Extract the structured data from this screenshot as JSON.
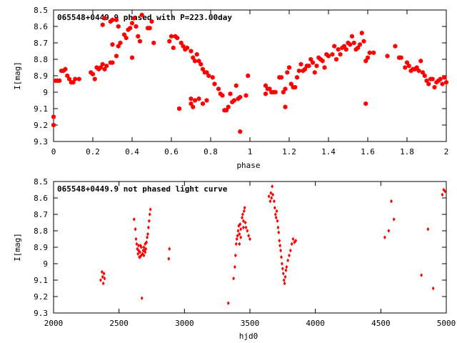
{
  "chart_data": [
    {
      "type": "scatter",
      "title": "065548+0449.9 phased with P=223.00day",
      "xlabel": "phase",
      "ylabel": "I[mag]",
      "xlim": [
        0,
        2
      ],
      "ylim": [
        9.3,
        8.5
      ],
      "y_inverted": true,
      "marker": "hexagon",
      "color": "#ff0000",
      "xticks": [
        0,
        0.2,
        0.4,
        0.6,
        0.8,
        1,
        1.2,
        1.4,
        1.6,
        1.8,
        2
      ],
      "xtick_labels": [
        "0",
        "0.2",
        "0.4",
        "0.6",
        "0.8",
        "1",
        "1.2",
        "1.4",
        "1.6",
        "1.8",
        "2"
      ],
      "yticks": [
        8.5,
        8.6,
        8.7,
        8.8,
        8.9,
        9,
        9.1,
        9.2,
        9.3
      ],
      "ytick_labels": [
        "8.5",
        "8.6",
        "8.7",
        "8.8",
        "8.9",
        "9",
        "9.1",
        "9.2",
        "9.3"
      ],
      "points": [
        [
          0.0,
          9.15
        ],
        [
          0.0,
          9.2
        ],
        [
          0.01,
          8.93
        ],
        [
          0.02,
          8.93
        ],
        [
          0.03,
          8.93
        ],
        [
          0.04,
          8.87
        ],
        [
          0.05,
          8.87
        ],
        [
          0.06,
          8.86
        ],
        [
          0.07,
          8.9
        ],
        [
          0.08,
          8.92
        ],
        [
          0.09,
          8.94
        ],
        [
          0.1,
          8.94
        ],
        [
          0.11,
          8.92
        ],
        [
          0.13,
          8.92
        ],
        [
          0.19,
          8.88
        ],
        [
          0.2,
          8.89
        ],
        [
          0.21,
          8.92
        ],
        [
          0.22,
          8.85
        ],
        [
          0.23,
          8.86
        ],
        [
          0.24,
          8.85
        ],
        [
          0.25,
          8.83
        ],
        [
          0.26,
          8.86
        ],
        [
          0.27,
          8.84
        ],
        [
          0.29,
          8.82
        ],
        [
          0.3,
          8.82
        ],
        [
          0.32,
          8.78
        ],
        [
          0.25,
          8.59
        ],
        [
          0.26,
          8.55
        ],
        [
          0.29,
          8.57
        ],
        [
          0.3,
          8.56
        ],
        [
          0.32,
          8.56
        ],
        [
          0.33,
          8.6
        ],
        [
          0.3,
          8.71
        ],
        [
          0.33,
          8.72
        ],
        [
          0.34,
          8.7
        ],
        [
          0.36,
          8.65
        ],
        [
          0.37,
          8.67
        ],
        [
          0.38,
          8.62
        ],
        [
          0.39,
          8.61
        ],
        [
          0.4,
          8.58
        ],
        [
          0.41,
          8.55
        ],
        [
          0.42,
          8.6
        ],
        [
          0.4,
          8.79
        ],
        [
          0.43,
          8.66
        ],
        [
          0.44,
          8.69
        ],
        [
          0.45,
          8.53
        ],
        [
          0.48,
          8.61
        ],
        [
          0.49,
          8.61
        ],
        [
          0.5,
          8.57
        ],
        [
          0.51,
          8.7
        ],
        [
          0.59,
          8.69
        ],
        [
          0.6,
          8.66
        ],
        [
          0.61,
          8.73
        ],
        [
          0.62,
          8.66
        ],
        [
          0.63,
          8.67
        ],
        [
          0.65,
          8.7
        ],
        [
          0.66,
          8.72
        ],
        [
          0.67,
          8.74
        ],
        [
          0.68,
          8.73
        ],
        [
          0.7,
          8.75
        ],
        [
          0.71,
          8.79
        ],
        [
          0.72,
          8.81
        ],
        [
          0.73,
          8.77
        ],
        [
          0.74,
          8.81
        ],
        [
          0.75,
          8.83
        ],
        [
          0.76,
          8.86
        ],
        [
          0.77,
          8.88
        ],
        [
          0.78,
          8.88
        ],
        [
          0.79,
          8.9
        ],
        [
          0.81,
          8.91
        ],
        [
          0.82,
          8.95
        ],
        [
          0.64,
          9.1
        ],
        [
          0.7,
          9.04
        ],
        [
          0.7,
          9.07
        ],
        [
          0.71,
          9.09
        ],
        [
          0.72,
          9.05
        ],
        [
          0.74,
          9.04
        ],
        [
          0.76,
          9.07
        ],
        [
          0.78,
          9.05
        ],
        [
          0.84,
          8.98
        ],
        [
          0.85,
          9.01
        ],
        [
          0.86,
          9.02
        ],
        [
          0.87,
          9.11
        ],
        [
          0.88,
          9.11
        ],
        [
          0.89,
          9.09
        ],
        [
          0.9,
          9.01
        ],
        [
          0.91,
          9.06
        ],
        [
          0.92,
          9.05
        ],
        [
          0.93,
          8.96
        ],
        [
          0.94,
          9.04
        ],
        [
          0.95,
          9.03
        ],
        [
          0.95,
          9.24
        ],
        [
          0.98,
          9.02
        ],
        [
          0.99,
          8.9
        ],
        [
          1.08,
          9.01
        ],
        [
          1.08,
          8.96
        ],
        [
          1.09,
          8.98
        ],
        [
          1.1,
          8.98
        ],
        [
          1.11,
          9.0
        ],
        [
          1.12,
          9.0
        ],
        [
          1.13,
          9.0
        ],
        [
          1.15,
          8.91
        ],
        [
          1.16,
          8.91
        ],
        [
          1.17,
          9.0
        ],
        [
          1.18,
          9.09
        ],
        [
          1.18,
          8.98
        ],
        [
          1.19,
          8.88
        ],
        [
          1.2,
          8.85
        ],
        [
          1.21,
          8.95
        ],
        [
          1.22,
          8.97
        ],
        [
          1.23,
          8.97
        ],
        [
          1.24,
          8.91
        ],
        [
          1.25,
          8.87
        ],
        [
          1.26,
          8.83
        ],
        [
          1.27,
          8.87
        ],
        [
          1.28,
          8.86
        ],
        [
          1.29,
          8.84
        ],
        [
          1.3,
          8.84
        ],
        [
          1.31,
          8.8
        ],
        [
          1.32,
          8.82
        ],
        [
          1.33,
          8.88
        ],
        [
          1.34,
          8.84
        ],
        [
          1.35,
          8.79
        ],
        [
          1.36,
          8.8
        ],
        [
          1.37,
          8.81
        ],
        [
          1.38,
          8.85
        ],
        [
          1.39,
          8.77
        ],
        [
          1.4,
          8.78
        ],
        [
          1.42,
          8.77
        ],
        [
          1.43,
          8.72
        ],
        [
          1.44,
          8.8
        ],
        [
          1.45,
          8.74
        ],
        [
          1.46,
          8.77
        ],
        [
          1.47,
          8.73
        ],
        [
          1.48,
          8.72
        ],
        [
          1.49,
          8.74
        ],
        [
          1.5,
          8.7
        ],
        [
          1.51,
          8.71
        ],
        [
          1.52,
          8.66
        ],
        [
          1.53,
          8.7
        ],
        [
          1.54,
          8.74
        ],
        [
          1.55,
          8.73
        ],
        [
          1.56,
          8.71
        ],
        [
          1.57,
          8.64
        ],
        [
          1.58,
          8.69
        ],
        [
          1.59,
          8.81
        ],
        [
          1.6,
          8.79
        ],
        [
          1.61,
          8.76
        ],
        [
          1.63,
          8.76
        ],
        [
          1.59,
          9.07
        ],
        [
          1.7,
          8.78
        ],
        [
          1.74,
          8.72
        ],
        [
          1.76,
          8.79
        ],
        [
          1.77,
          8.79
        ],
        [
          1.79,
          8.85
        ],
        [
          1.8,
          8.82
        ],
        [
          1.81,
          8.84
        ],
        [
          1.82,
          8.87
        ],
        [
          1.83,
          8.86
        ],
        [
          1.84,
          8.86
        ],
        [
          1.85,
          8.85
        ],
        [
          1.86,
          8.87
        ],
        [
          1.87,
          8.81
        ],
        [
          1.88,
          8.88
        ],
        [
          1.89,
          8.9
        ],
        [
          1.9,
          8.93
        ],
        [
          1.91,
          8.95
        ],
        [
          1.92,
          8.92
        ],
        [
          1.93,
          8.92
        ],
        [
          1.94,
          8.97
        ],
        [
          1.95,
          8.94
        ],
        [
          1.96,
          8.93
        ],
        [
          1.97,
          8.92
        ],
        [
          1.98,
          8.95
        ],
        [
          1.99,
          8.91
        ],
        [
          2.0,
          8.94
        ]
      ]
    },
    {
      "type": "scatter",
      "title": "065548+0449.9 not phased light curve",
      "xlabel": "hjd0",
      "ylabel": "I[mag]",
      "xlim": [
        2000,
        5000
      ],
      "ylim": [
        9.3,
        8.5
      ],
      "y_inverted": true,
      "marker": "diamond",
      "color": "#ff0000",
      "xticks": [
        2000,
        2500,
        3000,
        3500,
        4000,
        4500,
        5000
      ],
      "xtick_labels": [
        "2000",
        "2500",
        "3000",
        "3500",
        "4000",
        "4500",
        "5000"
      ],
      "yticks": [
        8.5,
        8.6,
        8.7,
        8.8,
        8.9,
        9,
        9.1,
        9.2,
        9.3
      ],
      "ytick_labels": [
        "8.5",
        "8.6",
        "8.7",
        "8.8",
        "8.9",
        "9",
        "9.1",
        "9.2",
        "9.3"
      ],
      "points": [
        [
          2360,
          9.1
        ],
        [
          2370,
          9.05
        ],
        [
          2375,
          9.08
        ],
        [
          2380,
          9.12
        ],
        [
          2385,
          9.06
        ],
        [
          2390,
          9.09
        ],
        [
          2615,
          8.73
        ],
        [
          2625,
          8.79
        ],
        [
          2630,
          8.85
        ],
        [
          2635,
          8.88
        ],
        [
          2640,
          8.91
        ],
        [
          2645,
          8.94
        ],
        [
          2650,
          8.92
        ],
        [
          2655,
          8.96
        ],
        [
          2660,
          8.93
        ],
        [
          2665,
          8.89
        ],
        [
          2670,
          8.95
        ],
        [
          2675,
          9.21
        ],
        [
          2680,
          8.94
        ],
        [
          2685,
          8.92
        ],
        [
          2690,
          8.9
        ],
        [
          2695,
          8.92
        ],
        [
          2700,
          8.88
        ],
        [
          2705,
          8.91
        ],
        [
          2710,
          8.87
        ],
        [
          2715,
          8.84
        ],
        [
          2720,
          8.82
        ],
        [
          2725,
          8.78
        ],
        [
          2730,
          8.74
        ],
        [
          2735,
          8.7
        ],
        [
          2740,
          8.67
        ],
        [
          2650,
          8.89
        ],
        [
          2660,
          8.96
        ],
        [
          2670,
          8.9
        ],
        [
          2690,
          8.95
        ],
        [
          2700,
          8.93
        ],
        [
          2880,
          8.97
        ],
        [
          2885,
          8.91
        ],
        [
          3335,
          9.24
        ],
        [
          3375,
          9.09
        ],
        [
          3385,
          9.02
        ],
        [
          3390,
          8.95
        ],
        [
          3395,
          8.88
        ],
        [
          3400,
          8.85
        ],
        [
          3405,
          8.83
        ],
        [
          3410,
          8.8
        ],
        [
          3415,
          8.77
        ],
        [
          3420,
          8.82
        ],
        [
          3425,
          8.76
        ],
        [
          3430,
          8.79
        ],
        [
          3440,
          8.72
        ],
        [
          3445,
          8.7
        ],
        [
          3450,
          8.74
        ],
        [
          3455,
          8.68
        ],
        [
          3460,
          8.66
        ],
        [
          3465,
          8.75
        ],
        [
          3470,
          8.78
        ],
        [
          3480,
          8.8
        ],
        [
          3490,
          8.83
        ],
        [
          3500,
          8.85
        ],
        [
          3420,
          8.88
        ],
        [
          3430,
          8.84
        ],
        [
          3450,
          8.78
        ],
        [
          3645,
          8.59
        ],
        [
          3655,
          8.62
        ],
        [
          3660,
          8.57
        ],
        [
          3665,
          8.6
        ],
        [
          3670,
          8.53
        ],
        [
          3675,
          8.58
        ],
        [
          3685,
          8.62
        ],
        [
          3690,
          8.66
        ],
        [
          3695,
          8.7
        ],
        [
          3700,
          8.72
        ],
        [
          3705,
          8.68
        ],
        [
          3710,
          8.74
        ],
        [
          3715,
          8.78
        ],
        [
          3720,
          8.81
        ],
        [
          3725,
          8.86
        ],
        [
          3730,
          8.89
        ],
        [
          3735,
          8.92
        ],
        [
          3740,
          8.96
        ],
        [
          3745,
          9.0
        ],
        [
          3750,
          9.03
        ],
        [
          3755,
          9.06
        ],
        [
          3760,
          9.1
        ],
        [
          3765,
          9.12
        ],
        [
          3770,
          9.08
        ],
        [
          3775,
          9.04
        ],
        [
          3780,
          9.02
        ],
        [
          3790,
          8.98
        ],
        [
          3800,
          8.95
        ],
        [
          3810,
          8.92
        ],
        [
          3820,
          8.88
        ],
        [
          3830,
          8.85
        ],
        [
          3840,
          8.87
        ],
        [
          3850,
          8.86
        ],
        [
          4530,
          8.84
        ],
        [
          4560,
          8.8
        ],
        [
          4580,
          8.62
        ],
        [
          4600,
          8.73
        ],
        [
          4810,
          9.07
        ],
        [
          4860,
          8.79
        ],
        [
          4900,
          9.15
        ],
        [
          4970,
          8.58
        ],
        [
          4980,
          8.55
        ],
        [
          4990,
          8.56
        ]
      ]
    }
  ]
}
